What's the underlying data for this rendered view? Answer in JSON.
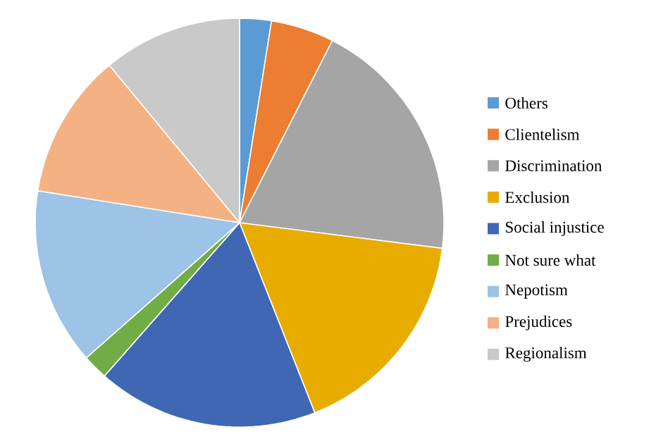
{
  "chart_data": {
    "type": "pie",
    "categories": [
      "Others",
      "Clientelism",
      "Discrimination",
      "Exclusion",
      "Social injustice",
      "Not sure what",
      "Nepotism",
      "Prejudices",
      "Regionalism"
    ],
    "values": [
      2.5,
      5,
      19.5,
      17,
      17.5,
      2,
      14,
      11.5,
      11
    ],
    "colors": [
      "#5b9bd5",
      "#ed7d31",
      "#a5a5a5",
      "#e8ac00",
      "#3f67b4",
      "#70ad47",
      "#9dc3e6",
      "#f4b183",
      "#c9c9c9"
    ],
    "legend": "right"
  }
}
